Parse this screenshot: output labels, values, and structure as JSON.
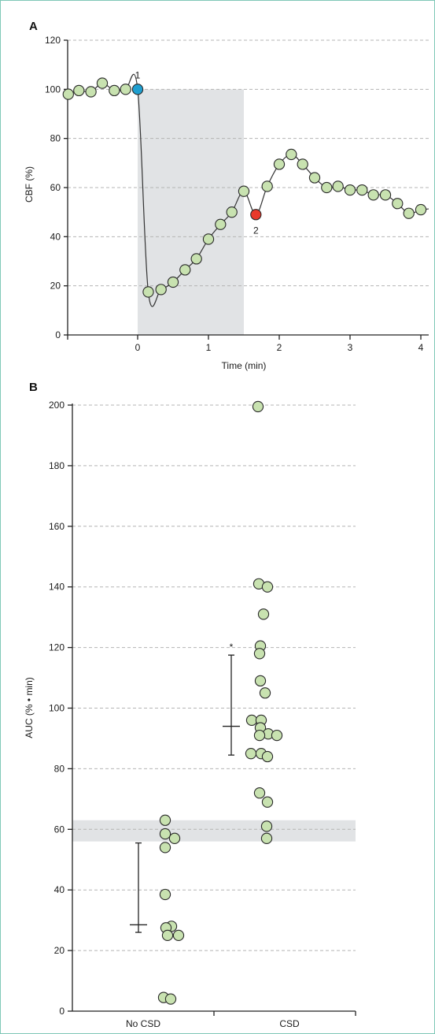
{
  "chart_data": [
    {
      "panel": "A",
      "type": "line",
      "xlabel": "Time (min)",
      "ylabel": "CBF (%)",
      "xlim": [
        -1,
        4.1
      ],
      "ylim": [
        0,
        120
      ],
      "xticks": [
        0,
        1,
        2,
        3,
        4
      ],
      "yticks": [
        0,
        20,
        40,
        60,
        80,
        100,
        120
      ],
      "grid": "horizontal dashed",
      "shaded_region": {
        "x": [
          0,
          1.5
        ],
        "y": [
          0,
          100
        ]
      },
      "annotations": [
        {
          "text": "1",
          "x": 0.0,
          "y": 100,
          "color": "#1f9fd0"
        },
        {
          "text": "2",
          "x": 1.67,
          "y": 49,
          "color": "#e8392b"
        }
      ],
      "x": [
        -0.98,
        -0.83,
        -0.66,
        -0.5,
        -0.33,
        -0.17,
        0.0,
        0.15,
        0.33,
        0.5,
        0.67,
        0.83,
        1.0,
        1.17,
        1.33,
        1.5,
        1.67,
        1.83,
        2.0,
        2.17,
        2.33,
        2.5,
        2.67,
        2.83,
        3.0,
        3.17,
        3.33,
        3.5,
        3.67,
        3.83,
        4.0
      ],
      "y": [
        98,
        99.5,
        99,
        102.5,
        99.5,
        100,
        100,
        17.5,
        18.5,
        21.5,
        26.5,
        31,
        39,
        45,
        50,
        58.5,
        49,
        60.5,
        69.5,
        73.5,
        69.5,
        64,
        60,
        60.5,
        59,
        59,
        57,
        57,
        53.5,
        49.5,
        51
      ]
    },
    {
      "panel": "B",
      "type": "scatter",
      "categories": [
        "No CSD",
        "CSD"
      ],
      "ylabel": "AUC (% • min)",
      "ylim": [
        0,
        200
      ],
      "yticks": [
        0,
        20,
        40,
        60,
        80,
        100,
        120,
        140,
        160,
        180,
        200
      ],
      "grid": "horizontal dashed",
      "shaded_band": [
        56,
        63
      ],
      "significance_marker": "*",
      "groups": [
        {
          "name": "No CSD",
          "values": [
            63,
            58.5,
            57,
            54,
            38.5,
            28,
            27.5,
            25,
            25,
            4.5,
            4
          ],
          "median": 28.5,
          "range": [
            26,
            55.5
          ]
        },
        {
          "name": "CSD",
          "values": [
            199.5,
            141,
            140,
            131,
            120.5,
            118,
            109,
            105,
            96,
            96,
            93.5,
            91.5,
            91,
            91,
            85,
            85,
            84,
            72,
            69,
            61,
            57
          ],
          "median": 94,
          "range": [
            84.5,
            117.5
          ]
        }
      ]
    }
  ]
}
